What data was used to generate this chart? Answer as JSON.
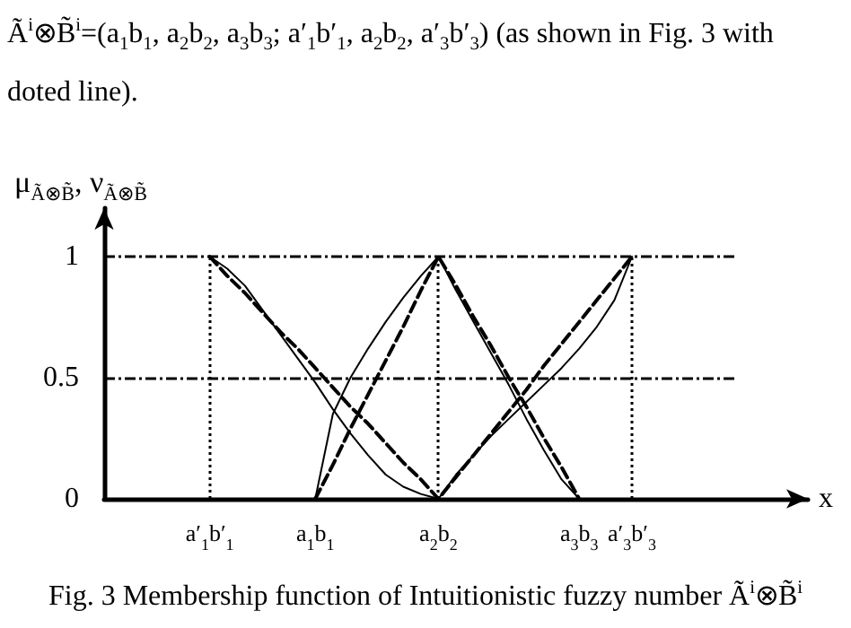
{
  "chart_data": {
    "type": "line",
    "title": "Ã$^{i}$⊗B̃$^{i}$=(a$_{1}$b$_{1}$, a$_{2}$b$_{2}$, a$_{3}$b$_{3}$; a′$_{1}$b′$_{1}$, a$_{2}$b$_{2}$, a′$_{3}$b′$_{3}$) (as shown in Fig. 3 with doted line).",
    "ylabel": "μ$_{Ã⊗B̃}$, ν$_{Ã⊗B̃}$",
    "xlabel": "x",
    "annotations": [
      "Fig. 3 Membership function of Intuitionistic fuzzy number Ã$^{i}$⊗B̃$^{i}$"
    ],
    "categories": [
      null,
      null,
      null,
      null,
      null,
      null,
      "a′$_{1}$b′$_{1}$",
      null,
      null,
      null,
      null,
      null,
      "a$_{1}$b$_{1}$",
      null,
      null,
      null,
      null,
      null,
      null,
      "a$_{2}$b$_{2}$",
      null,
      null,
      null,
      null,
      null,
      null,
      null,
      "a$_{3}$b$_{3}$",
      null,
      null,
      "a′$_{3}$b′$_{3}$",
      null,
      null,
      null,
      null,
      null,
      null,
      null,
      null,
      null,
      null
    ],
    "ylim": [
      0,
      1.2
    ],
    "yticks": [
      0,
      0.5,
      1
    ],
    "series": [
      {
        "color": "#000000",
        "line_style": "dashed",
        "values": [
          null,
          null,
          null,
          null,
          null,
          null,
          null,
          null,
          null,
          null,
          null,
          null,
          0,
          0.14,
          0.29,
          0.43,
          0.57,
          0.71,
          0.86,
          1,
          0.88,
          0.75,
          0.63,
          0.5,
          0.38,
          0.25,
          0.13,
          0,
          null,
          null,
          null,
          null,
          null,
          null,
          null,
          null,
          null,
          null,
          null,
          null,
          null
        ]
      },
      {
        "color": "#000000",
        "line_style": "dashed",
        "values": [
          null,
          null,
          null,
          null,
          null,
          null,
          1,
          0.92,
          0.85,
          0.77,
          0.69,
          0.62,
          0.54,
          0.46,
          0.38,
          0.31,
          0.23,
          0.15,
          0.08,
          0,
          0.09,
          0.18,
          0.27,
          0.36,
          0.45,
          0.55,
          0.64,
          0.73,
          0.82,
          0.91,
          1,
          null,
          null,
          null,
          null,
          null,
          null,
          null,
          null,
          null,
          null
        ]
      },
      {
        "color": "#000000",
        "line_style": "solid",
        "values": [
          null,
          null,
          null,
          null,
          null,
          null,
          null,
          null,
          null,
          null,
          null,
          null,
          0,
          0.35,
          0.5,
          0.62,
          0.73,
          0.83,
          0.92,
          1,
          0.86,
          0.73,
          0.6,
          0.47,
          0.33,
          0.2,
          0.08,
          0,
          null,
          null,
          null,
          null,
          null,
          null,
          null,
          null,
          null,
          null,
          null,
          null,
          null
        ]
      },
      {
        "color": "#000000",
        "line_style": "solid",
        "values": [
          null,
          null,
          null,
          null,
          null,
          null,
          1,
          0.95,
          0.88,
          0.78,
          0.68,
          0.58,
          0.48,
          0.37,
          0.27,
          0.18,
          0.1,
          0.05,
          0.02,
          0,
          0.1,
          0.18,
          0.26,
          0.33,
          0.4,
          0.47,
          0.54,
          0.62,
          0.71,
          0.82,
          1,
          null,
          null,
          null,
          null,
          null,
          null,
          null,
          null,
          null,
          null
        ]
      }
    ],
    "ref_lines": [
      {
        "axis": "y",
        "value": 1,
        "line_style": "dashdot",
        "color": "#000000"
      },
      {
        "axis": "y",
        "value": 0.5,
        "line_style": "dashdot",
        "color": "#000000"
      },
      {
        "axis": "x",
        "value": "a′$_{1}$b′$_{1}$",
        "line_style": "dotted",
        "color": "#000000"
      },
      {
        "axis": "x",
        "value": "a$_{2}$b$_{2}$",
        "line_style": "dotted",
        "color": "#000000"
      },
      {
        "axis": "x",
        "value": "a′$_{3}$b′$_{3}$",
        "line_style": "dotted",
        "color": "#000000"
      }
    ],
    "marker": "none",
    "grid": false
  }
}
